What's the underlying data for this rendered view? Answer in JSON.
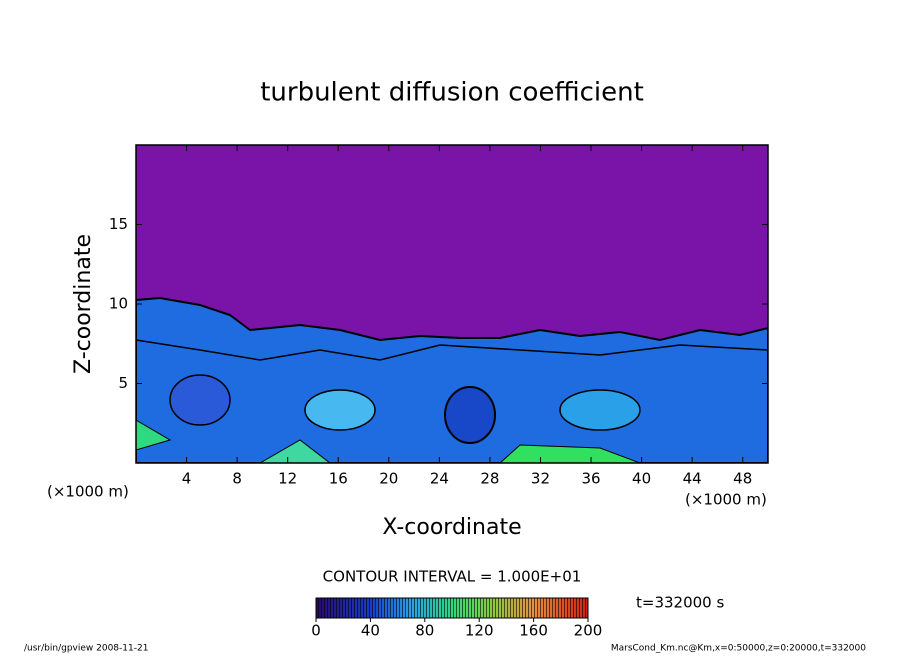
{
  "chart_data": {
    "type": "contour",
    "title": "turbulent diffusion coefficient",
    "x_label": "X-coordinate",
    "y_label": "Z-coordinate",
    "x_unit": "(×1000 m)",
    "y_unit": "(×1000 m)",
    "xlim": [
      0,
      50
    ],
    "xticks": [
      4,
      8,
      12,
      16,
      20,
      24,
      28,
      32,
      36,
      40,
      44,
      48
    ],
    "ylim": [
      0,
      20
    ],
    "yticks": [
      5,
      10,
      15
    ],
    "contour_interval_label": "CONTOUR INTERVAL = 1.000E+01",
    "time_label": "t=332000 s",
    "colorbar": {
      "lim": [
        0,
        200
      ],
      "ticks": [
        0,
        40,
        80,
        120,
        160,
        200
      ]
    },
    "footer_left": "/usr/bin/gpview  2008-11-21",
    "footer_right": "MarsCond_Km.nc@Km,x=0:50000,z=0:20000,t=332000"
  }
}
